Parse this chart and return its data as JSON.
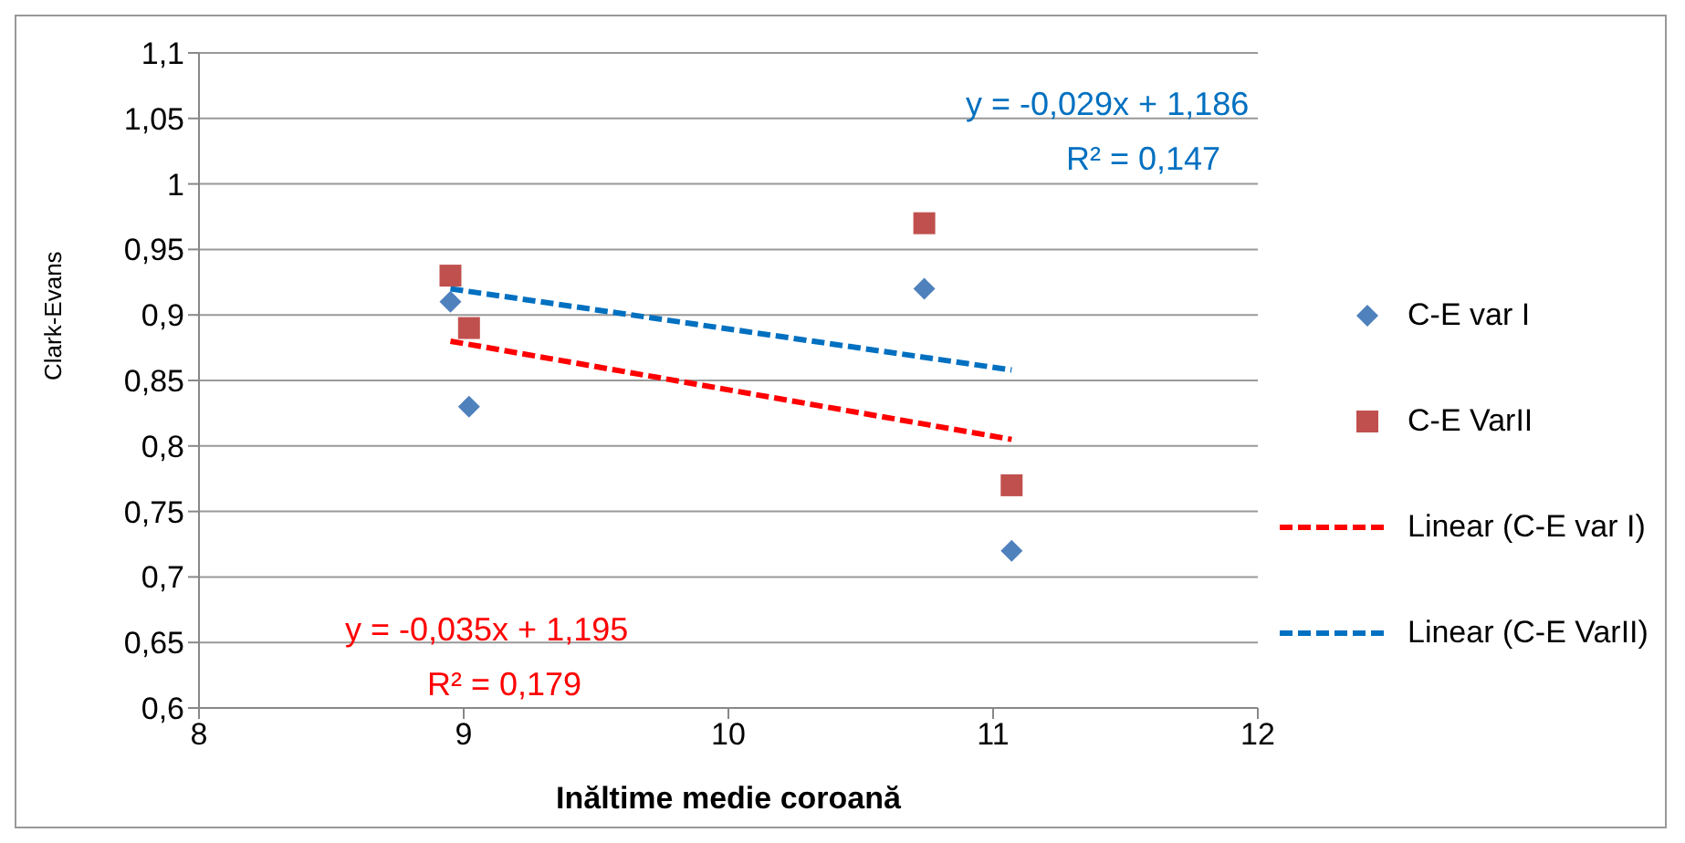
{
  "chart_data": {
    "type": "scatter",
    "xlabel": "Inăltime medie coroană",
    "ylabel": "Clark-Evans",
    "xlim": [
      8,
      12
    ],
    "xticks": [
      8,
      9,
      10,
      11,
      12
    ],
    "ylim": [
      0.6,
      1.1
    ],
    "yticks": [
      {
        "value": 0.6,
        "label": "0,6"
      },
      {
        "value": 0.65,
        "label": "0,65"
      },
      {
        "value": 0.7,
        "label": "0,7"
      },
      {
        "value": 0.75,
        "label": "0,75"
      },
      {
        "value": 0.8,
        "label": "0,8"
      },
      {
        "value": 0.85,
        "label": "0,85"
      },
      {
        "value": 0.9,
        "label": "0,9"
      },
      {
        "value": 0.95,
        "label": "0,95"
      },
      {
        "value": 1,
        "label": "1"
      },
      {
        "value": 1.05,
        "label": "1,05"
      },
      {
        "value": 1.1,
        "label": "1,1"
      }
    ],
    "grid": "y",
    "legend": "right",
    "series": [
      {
        "name": "C-E var I",
        "marker": "diamond",
        "color": "#4f81bd",
        "x": [
          8.95,
          9.02,
          10.74,
          11.07
        ],
        "values": [
          0.91,
          0.83,
          0.92,
          0.72
        ]
      },
      {
        "name": "C-E VarII",
        "marker": "square",
        "color": "#c0504d",
        "x": [
          8.95,
          9.02,
          10.74,
          11.07
        ],
        "values": [
          0.93,
          0.89,
          0.97,
          0.77
        ]
      },
      {
        "name": "Linear (C-E var I)",
        "type": "line",
        "line_style": "dashed",
        "marker": "none",
        "color": "#ff0000",
        "x": [
          8.95,
          11.07
        ],
        "values": [
          0.88,
          0.805
        ]
      },
      {
        "name": "Linear (C-E VarII)",
        "type": "line",
        "line_style": "dashed",
        "marker": "none",
        "color": "#0070c0",
        "x": [
          8.95,
          11.07
        ],
        "values": [
          0.92,
          0.858
        ]
      }
    ],
    "annotations": [
      "y = -0,029x + 1,186",
      "R² = 0,147",
      "y = -0,035x + 1,195",
      "R² = 0,179"
    ]
  }
}
